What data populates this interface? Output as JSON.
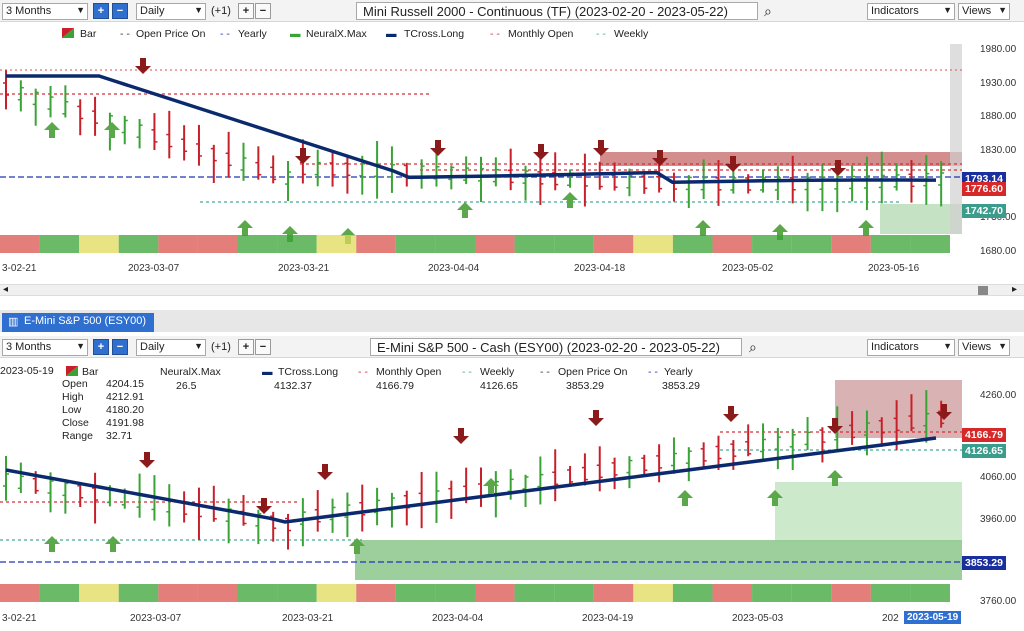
{
  "top": {
    "period": "3 Months",
    "interval": "Daily",
    "offset": "(+1)",
    "title": "Mini Russell 2000 - Continuous (TF) (2023-02-20 - 2023-05-22)",
    "indicators_label": "Indicators",
    "views_label": "Views",
    "legend": [
      "Bar",
      "Open Price On",
      "Yearly",
      "NeuralX.Max",
      "TCross.Long",
      "Monthly Open",
      "Weekly"
    ],
    "price_labels": [
      "1793.14",
      "1776.60",
      "1742.70"
    ],
    "y_ticks": [
      "1980.00",
      "1930.00",
      "1880.00",
      "1830.00",
      "1780.00",
      "1730.00",
      "1680.00"
    ],
    "x_ticks": [
      "3-02-21",
      "2023-03-07",
      "2023-03-21",
      "2023-04-04",
      "2023-04-18",
      "2023-05-02",
      "2023-05-16"
    ]
  },
  "bottom": {
    "tab_label": "E-Mini S&P 500 (ESY00)",
    "period": "3 Months",
    "interval": "Daily",
    "offset": "(+1)",
    "title": "E-Mini S&P 500 - Cash (ESY00) (2023-02-20 - 2023-05-22)",
    "indicators_label": "Indicators",
    "views_label": "Views",
    "date": "2023-05-19",
    "ohlc": [
      {
        "k": "Open",
        "v": "4204.15"
      },
      {
        "k": "High",
        "v": "4212.91"
      },
      {
        "k": "Low",
        "v": "4180.20"
      },
      {
        "k": "Close",
        "v": "4191.98"
      },
      {
        "k": "Range",
        "v": "32.71"
      }
    ],
    "legend": [
      {
        "name": "Bar",
        "val": ""
      },
      {
        "name": "NeuralX.Max",
        "val": "26.5"
      },
      {
        "name": "TCross.Long",
        "val": "4132.37"
      },
      {
        "name": "Monthly Open",
        "val": "4166.79"
      },
      {
        "name": "Weekly",
        "val": "4126.65"
      },
      {
        "name": "Open Price On",
        "val": "3853.29"
      },
      {
        "name": "Yearly",
        "val": "3853.29"
      }
    ],
    "price_labels": [
      "4166.79",
      "4126.65",
      "3853.29"
    ],
    "y_ticks": [
      "4260.00",
      "4160.00",
      "4060.00",
      "3960.00",
      "3860.00",
      "3760.00"
    ],
    "x_ticks": [
      "3-02-21",
      "2023-03-07",
      "2023-03-21",
      "2023-04-04",
      "2023-04-19",
      "2023-05-03",
      "202"
    ],
    "cursor_date": "2023-05-19"
  },
  "colors": {
    "up": "#3aa335",
    "down": "#c8202a",
    "tcross": "#0b2a6e",
    "monthly": "#d0303a",
    "weekly": "#4aa59a",
    "yearly": "#2036b8"
  }
}
